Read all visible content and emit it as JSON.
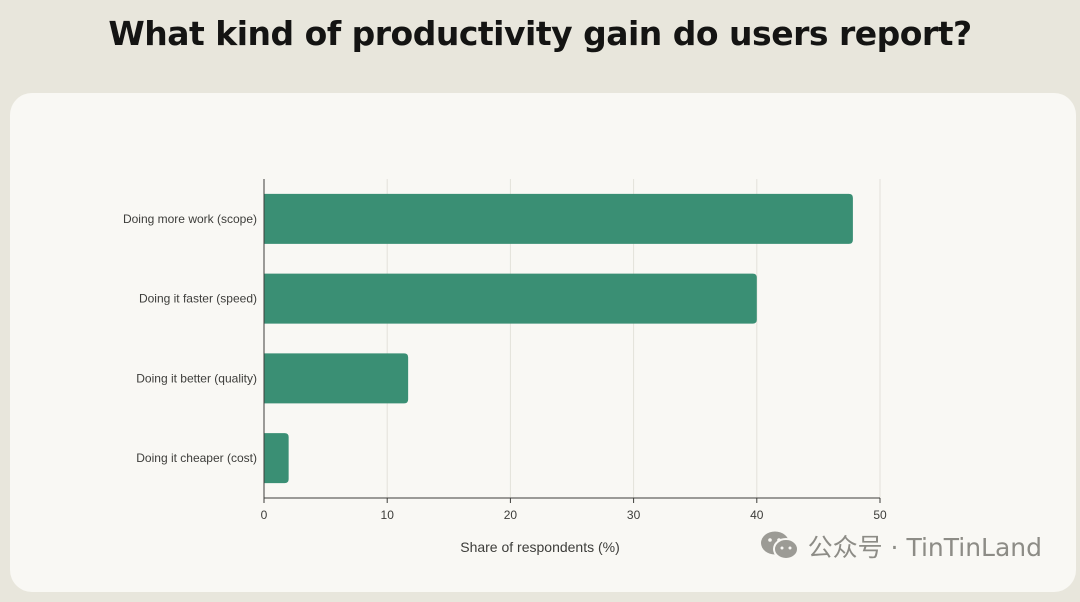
{
  "page": {
    "title": "What kind of productivity gain do users report?"
  },
  "watermark": {
    "text": "公众号 · TinTinLand",
    "icon": "wechat-icon"
  },
  "colors": {
    "bar": "#3a8f74",
    "grid": "#e3e1da",
    "axis": "#3d3d3a"
  },
  "chart_data": {
    "type": "bar",
    "orientation": "horizontal",
    "title": "What kind of productivity gain do users report?",
    "xlabel": "Share of respondents (%)",
    "ylabel": "",
    "categories": [
      "Doing more work (scope)",
      "Doing it faster (speed)",
      "Doing it better (quality)",
      "Doing it cheaper (cost)"
    ],
    "values": [
      47.8,
      40,
      11.7,
      2
    ],
    "xlim": [
      0,
      50
    ],
    "xticks": [
      0,
      10,
      20,
      30,
      40,
      50
    ],
    "grid": true
  }
}
